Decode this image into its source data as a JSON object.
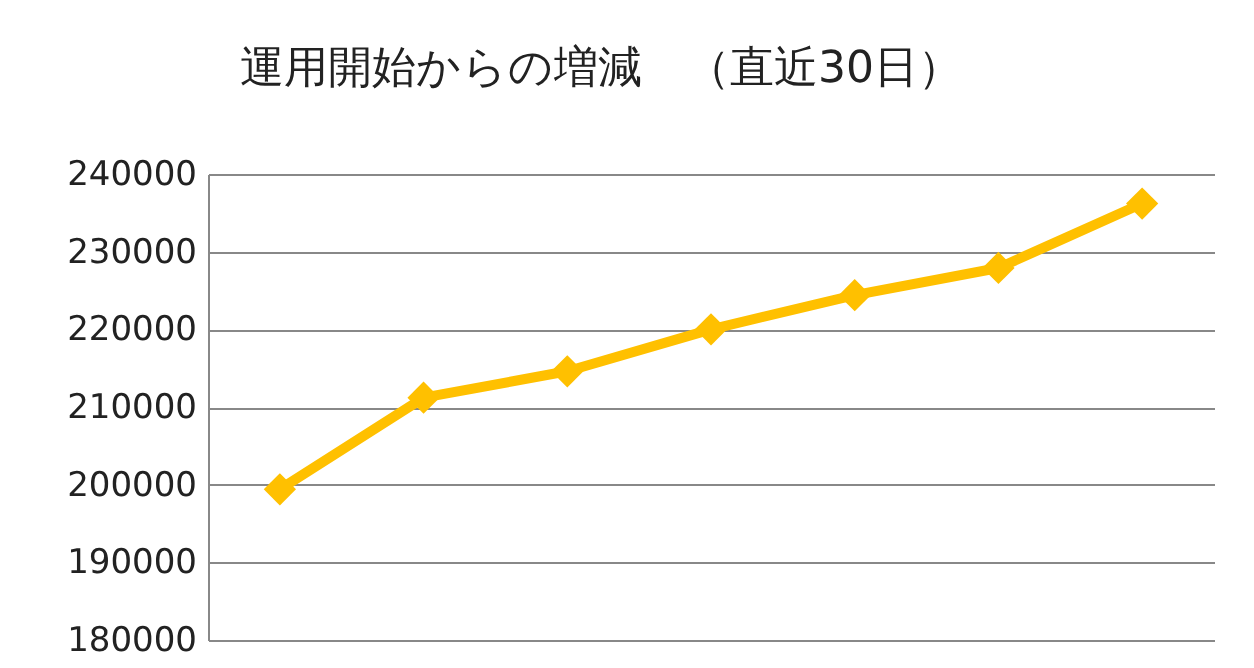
{
  "chart_data": {
    "type": "line",
    "title": "運用開始からの増減　（直近30日）",
    "categories": [
      null,
      null,
      null,
      null,
      null,
      null,
      null
    ],
    "series": [
      {
        "color": "#ffc000",
        "values": [
          199400,
          211200,
          214600,
          220000,
          224400,
          227900,
          236200
        ]
      }
    ],
    "ylim": [
      180000,
      240000
    ],
    "yticks": [
      180000,
      190000,
      200000,
      210000,
      220000,
      230000,
      240000
    ],
    "grid": "y",
    "marker": "diamond",
    "line_style": "solid",
    "tick_labels": "y",
    "legend": false
  }
}
